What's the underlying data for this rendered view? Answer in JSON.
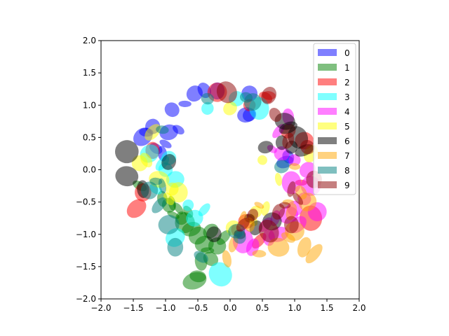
{
  "chart_data": {
    "type": "scatter",
    "title": "",
    "xlabel": "",
    "ylabel": "",
    "xlim": [
      -2,
      2
    ],
    "ylim": [
      -2,
      2
    ],
    "xticks": [
      "−2.0",
      "−1.5",
      "−1.0",
      "−0.5",
      "0.0",
      "0.5",
      "1.0",
      "1.5",
      "2.0"
    ],
    "yticks": [
      "−2.0",
      "−1.5",
      "−1.0",
      "−0.5",
      "0.0",
      "0.5",
      "1.0",
      "1.5",
      "2.0"
    ],
    "grid": false,
    "legend_position": "top-right",
    "marker": "ellipse, alpha 0.5",
    "series": [
      {
        "name": "0",
        "color": "#0000ff",
        "points": [
          [
            0.3,
            0.85
          ],
          [
            0.25,
            0.85
          ],
          [
            -0.95,
            0.58
          ],
          [
            -0.8,
            0.62
          ],
          [
            -1.0,
            0.4
          ],
          [
            -1.15,
            0.33
          ],
          [
            -1.2,
            0.67
          ],
          [
            -1.3,
            0.58
          ],
          [
            -1.35,
            0.51
          ],
          [
            -0.9,
            0.93
          ],
          [
            -0.7,
            1.02
          ],
          [
            -0.55,
            1.18
          ],
          [
            -0.4,
            1.23
          ],
          [
            -0.2,
            1.22
          ],
          [
            0.85,
            0.12
          ],
          [
            0.9,
            0.2
          ],
          [
            0.3,
            1.18
          ],
          [
            -1.05,
            0.25
          ]
        ]
      },
      {
        "name": "1",
        "color": "#008000",
        "points": [
          [
            -0.9,
            -0.52
          ],
          [
            -0.95,
            -0.55
          ],
          [
            -0.8,
            -0.6
          ],
          [
            -1.05,
            -0.45
          ],
          [
            -0.75,
            -0.75
          ],
          [
            -0.7,
            -0.82
          ],
          [
            -0.6,
            -0.92
          ],
          [
            -0.5,
            -1.02
          ],
          [
            -0.4,
            -1.15
          ],
          [
            -0.35,
            -1.25
          ],
          [
            -0.3,
            -1.38
          ],
          [
            -0.45,
            -1.42
          ],
          [
            -0.5,
            -1.65
          ],
          [
            -0.55,
            -1.72
          ],
          [
            -0.1,
            -1.05
          ],
          [
            -0.2,
            -1.18
          ],
          [
            -1.4,
            -0.25
          ],
          [
            -0.65,
            -0.65
          ],
          [
            -0.88,
            -0.7
          ],
          [
            -0.3,
            -0.95
          ]
        ]
      },
      {
        "name": "2",
        "color": "#ff0000",
        "points": [
          [
            0.25,
            -0.8
          ],
          [
            0.1,
            -0.95
          ],
          [
            0.3,
            1.0
          ],
          [
            0.6,
            1.15
          ],
          [
            -0.2,
            1.2
          ],
          [
            1.25,
            -0.75
          ],
          [
            1.15,
            0.45
          ],
          [
            -1.45,
            -0.6
          ],
          [
            -1.35,
            -0.35
          ],
          [
            0.55,
            1.12
          ],
          [
            0.45,
            -1.1
          ],
          [
            1.1,
            -0.2
          ],
          [
            -1.2,
            0.3
          ],
          [
            0.9,
            0.6
          ]
        ]
      },
      {
        "name": "3",
        "color": "#00ffff",
        "points": [
          [
            -0.4,
            -0.62
          ],
          [
            -0.85,
            -0.15
          ],
          [
            -1.0,
            0.0
          ],
          [
            -0.65,
            -0.55
          ],
          [
            -0.55,
            -0.75
          ],
          [
            -1.15,
            -0.3
          ],
          [
            -1.25,
            0.25
          ],
          [
            0.45,
            0.95
          ],
          [
            -0.35,
            0.95
          ],
          [
            -1.05,
            0.1
          ],
          [
            -0.15,
            -1.62
          ],
          [
            -0.85,
            -1.05
          ],
          [
            0.1,
            1.1
          ],
          [
            -0.95,
            0.18
          ]
        ]
      },
      {
        "name": "4",
        "color": "#ff00ff",
        "points": [
          [
            0.65,
            0.32
          ],
          [
            0.8,
            0.25
          ],
          [
            1.0,
            0.15
          ],
          [
            1.2,
            0.0
          ],
          [
            1.25,
            -0.25
          ],
          [
            1.15,
            -0.45
          ],
          [
            1.0,
            -0.6
          ],
          [
            0.9,
            -0.7
          ],
          [
            0.7,
            -0.75
          ],
          [
            0.55,
            -0.85
          ],
          [
            0.95,
            -0.2
          ],
          [
            0.75,
            0.6
          ],
          [
            0.9,
            0.82
          ],
          [
            1.35,
            -0.65
          ],
          [
            1.05,
            -0.85
          ],
          [
            0.6,
            -1.05
          ],
          [
            0.2,
            -1.1
          ],
          [
            0.35,
            -1.2
          ],
          [
            0.75,
            -1.0
          ]
        ]
      },
      {
        "name": "5",
        "color": "#ffff00",
        "points": [
          [
            -0.9,
            -0.3
          ],
          [
            -1.1,
            -0.15
          ],
          [
            -0.95,
            -0.45
          ],
          [
            -0.8,
            -0.35
          ],
          [
            -1.3,
            0.15
          ],
          [
            0.0,
            0.95
          ],
          [
            0.4,
            -0.65
          ],
          [
            0.55,
            -0.6
          ],
          [
            0.35,
            -0.78
          ],
          [
            -1.4,
            0.1
          ],
          [
            0.05,
            -0.9
          ],
          [
            -1.2,
            0.58
          ],
          [
            0.5,
            0.15
          ],
          [
            0.75,
            -0.15
          ],
          [
            1.25,
            0.25
          ]
        ]
      },
      {
        "name": "6",
        "color": "#000000",
        "points": [
          [
            0.8,
            0.42
          ],
          [
            0.85,
            0.75
          ],
          [
            0.9,
            0.65
          ],
          [
            0.55,
            0.35
          ],
          [
            0.3,
            -0.75
          ],
          [
            0.4,
            -0.9
          ],
          [
            0.65,
            -0.8
          ],
          [
            1.15,
            0.3
          ],
          [
            -1.35,
            -0.3
          ],
          [
            -1.6,
            -0.1
          ],
          [
            -0.95,
            0.12
          ],
          [
            -1.6,
            0.28
          ],
          [
            0.95,
            0.35
          ],
          [
            1.05,
            0.5
          ],
          [
            0.15,
            -1.0
          ],
          [
            -0.25,
            -1.0
          ]
        ]
      },
      {
        "name": "7",
        "color": "#ffa500",
        "points": [
          [
            0.3,
            -0.85
          ],
          [
            0.2,
            -0.75
          ],
          [
            0.45,
            -0.55
          ],
          [
            0.9,
            -0.5
          ],
          [
            1.1,
            -0.35
          ],
          [
            1.0,
            -0.95
          ],
          [
            0.9,
            -1.05
          ],
          [
            0.75,
            -1.2
          ],
          [
            1.15,
            -1.2
          ],
          [
            1.3,
            -1.3
          ],
          [
            0.45,
            -1.3
          ],
          [
            0.95,
            -0.65
          ],
          [
            -0.05,
            -1.38
          ],
          [
            0.05,
            -1.15
          ],
          [
            1.0,
            0.05
          ],
          [
            1.2,
            -0.5
          ]
        ]
      },
      {
        "name": "8",
        "color": "#008080",
        "points": [
          [
            -1.25,
            -0.32
          ],
          [
            -1.05,
            -0.25
          ],
          [
            -0.95,
            -0.85
          ],
          [
            -0.85,
            -1.2
          ],
          [
            -1.15,
            -0.18
          ],
          [
            0.1,
            -0.95
          ],
          [
            0.25,
            1.12
          ],
          [
            -0.35,
            1.1
          ],
          [
            0.35,
            1.05
          ],
          [
            -1.05,
            0.62
          ],
          [
            0.8,
            0.05
          ],
          [
            -0.45,
            -1.35
          ],
          [
            0.15,
            -1.05
          ],
          [
            -1.1,
            -0.55
          ]
        ]
      },
      {
        "name": "9",
        "color": "#8b0000",
        "points": [
          [
            0.85,
            -0.55
          ],
          [
            0.75,
            -0.65
          ],
          [
            1.05,
            -0.45
          ],
          [
            0.95,
            -0.3
          ],
          [
            0.35,
            -0.7
          ],
          [
            0.2,
            -0.85
          ],
          [
            0.6,
            -0.95
          ],
          [
            0.9,
            0.45
          ],
          [
            1.2,
            0.35
          ],
          [
            0.7,
            0.85
          ],
          [
            0.95,
            -0.85
          ],
          [
            0.6,
            1.15
          ],
          [
            -0.05,
            1.2
          ],
          [
            1.3,
            -0.15
          ]
        ]
      }
    ]
  }
}
